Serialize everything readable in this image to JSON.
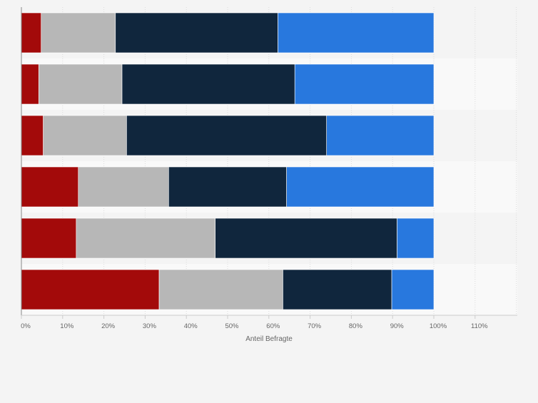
{
  "chart_data": {
    "type": "bar",
    "orientation": "horizontal",
    "stacked": true,
    "categories": [
      "",
      "",
      "",
      "",
      "",
      ""
    ],
    "series": [
      {
        "color": "#a30a0a",
        "values": [
          4.8,
          4.2,
          5.3,
          13.8,
          13.3,
          33.4
        ]
      },
      {
        "color": "#b7b7b7",
        "values": [
          18.0,
          20.2,
          20.2,
          21.9,
          33.7,
          30.0
        ]
      },
      {
        "color": "#10263d",
        "values": [
          39.4,
          41.9,
          48.5,
          28.6,
          44.1,
          26.4
        ]
      },
      {
        "color": "#2878de",
        "values": [
          37.8,
          33.7,
          26.0,
          35.7,
          8.9,
          10.2
        ]
      }
    ],
    "xlabel": "Anteil Befragte",
    "ylabel": "",
    "xlim": [
      0,
      120
    ],
    "x_ticks": [
      "0%",
      "10%",
      "20%",
      "30%",
      "40%",
      "50%",
      "60%",
      "70%",
      "80%",
      "90%",
      "100%",
      "110%"
    ],
    "grid": true,
    "legend": "none"
  }
}
